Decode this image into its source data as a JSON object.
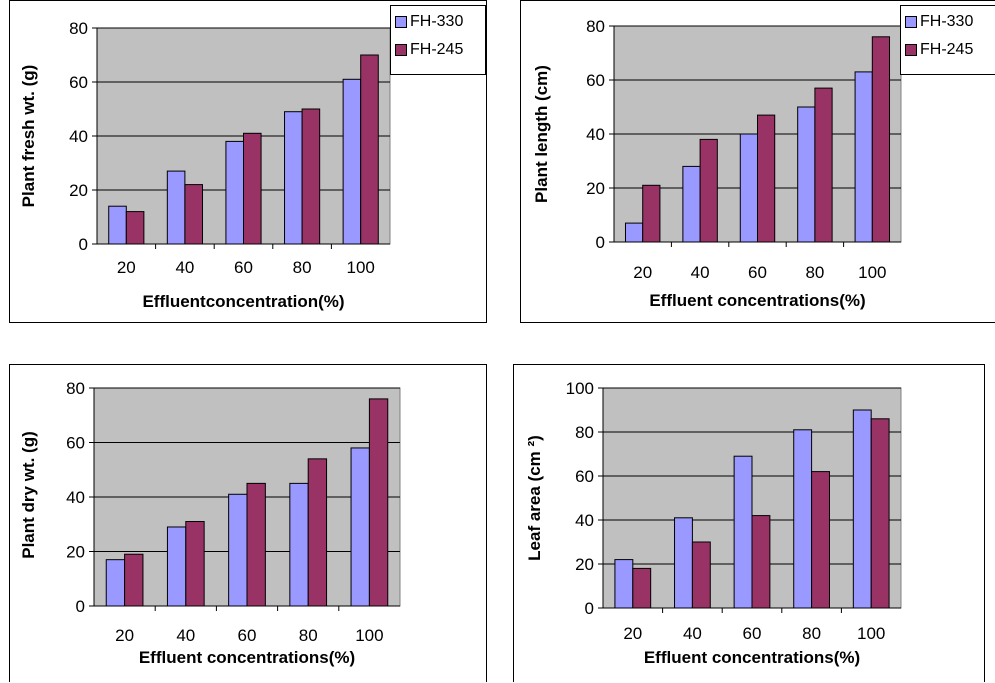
{
  "colors": {
    "series1": "#9999ff",
    "series2": "#993366",
    "plot_bg": "#c0c0c0"
  },
  "legend": {
    "series": [
      "FH-330",
      "FH-245"
    ]
  },
  "chart_data": [
    {
      "type": "bar",
      "categories": [
        "20",
        "40",
        "60",
        "80",
        "100"
      ],
      "series": [
        {
          "name": "FH-330",
          "values": [
            14,
            27,
            38,
            49,
            61
          ]
        },
        {
          "name": "FH-245",
          "values": [
            12,
            22,
            41,
            50,
            70
          ]
        }
      ],
      "xlabel": "Effluentconcentration(%)",
      "ylabel": "Plant  fresh wt. (g)",
      "ylim": [
        0,
        80
      ],
      "yticks": [
        0,
        20,
        40,
        60,
        80
      ],
      "grid": true,
      "legend_position": "top-right"
    },
    {
      "type": "bar",
      "categories": [
        "20",
        "40",
        "60",
        "80",
        "100"
      ],
      "series": [
        {
          "name": "FH-330",
          "values": [
            7,
            28,
            40,
            50,
            63
          ]
        },
        {
          "name": "FH-245",
          "values": [
            21,
            38,
            47,
            57,
            76
          ]
        }
      ],
      "xlabel": "Effluent concentrations(%)",
      "ylabel": "Plant length (cm)",
      "ylim": [
        0,
        80
      ],
      "yticks": [
        0,
        20,
        40,
        60,
        80
      ],
      "grid": true,
      "legend_position": "top-right"
    },
    {
      "type": "bar",
      "categories": [
        "20",
        "40",
        "60",
        "80",
        "100"
      ],
      "series": [
        {
          "name": "FH-330",
          "values": [
            17,
            29,
            41,
            45,
            58
          ]
        },
        {
          "name": "FH-245",
          "values": [
            19,
            31,
            45,
            54,
            76
          ]
        }
      ],
      "xlabel": "Effluent concentrations(%)",
      "ylabel": "Plant dry wt. (g)",
      "ylim": [
        0,
        80
      ],
      "yticks": [
        0,
        20,
        40,
        60,
        80
      ],
      "grid": true
    },
    {
      "type": "bar",
      "categories": [
        "20",
        "40",
        "60",
        "80",
        "100"
      ],
      "series": [
        {
          "name": "FH-330",
          "values": [
            22,
            41,
            69,
            81,
            90
          ]
        },
        {
          "name": "FH-245",
          "values": [
            18,
            30,
            42,
            62,
            86
          ]
        }
      ],
      "xlabel": "Effluent concentrations(%)",
      "ylabel": "Leaf area (cm ²)",
      "ylim": [
        0,
        100
      ],
      "yticks": [
        0,
        20,
        40,
        60,
        80,
        100
      ],
      "grid": true
    }
  ]
}
